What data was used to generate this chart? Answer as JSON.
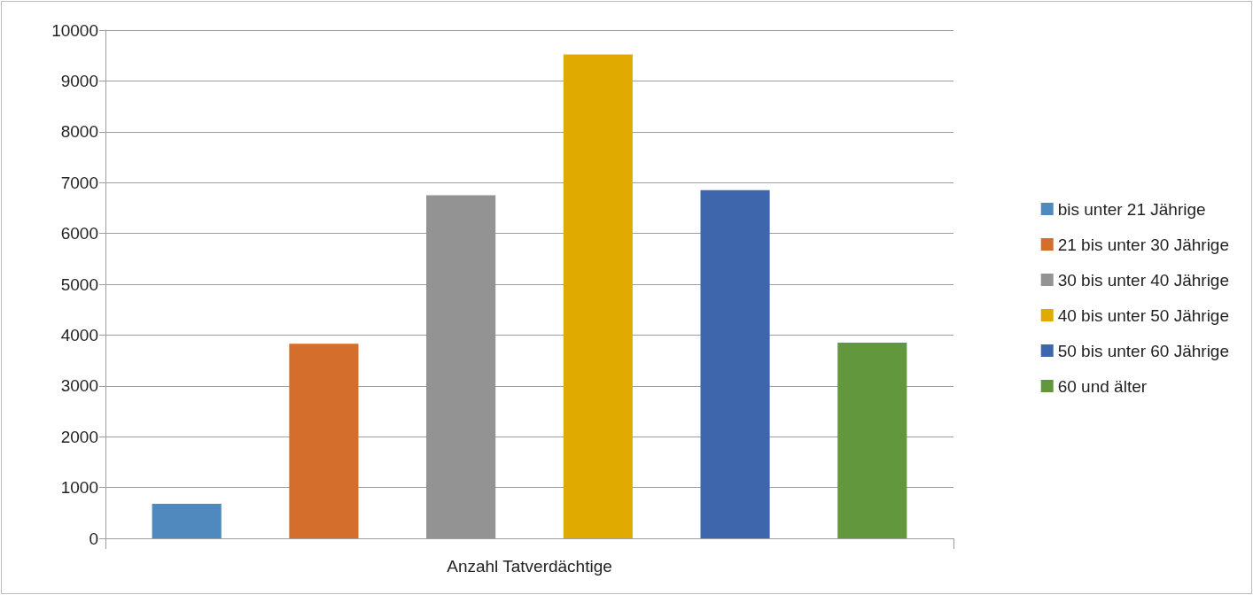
{
  "chart_data": {
    "type": "bar",
    "categories": [
      "Anzahl Tatverdächtige"
    ],
    "series": [
      {
        "name": "bis unter 21 Jährige",
        "color": "#4f89be",
        "values": [
          680
        ]
      },
      {
        "name": "21 bis unter 30 Jährige",
        "color": "#d46e2c",
        "values": [
          3830
        ]
      },
      {
        "name": "30 bis unter 40 Jährige",
        "color": "#939393",
        "values": [
          6750
        ]
      },
      {
        "name": "40 bis unter 50 Jährige",
        "color": "#e1aa00",
        "values": [
          9520
        ]
      },
      {
        "name": "50 bis unter 60 Jährige",
        "color": "#3d66ad",
        "values": [
          6850
        ]
      },
      {
        "name": "60 und älter",
        "color": "#62973d",
        "values": [
          3850
        ]
      }
    ],
    "ylim": [
      0,
      10000
    ],
    "yticks": [
      0,
      1000,
      2000,
      3000,
      4000,
      5000,
      6000,
      7000,
      8000,
      9000,
      10000
    ],
    "grid": "y",
    "legend": "right"
  }
}
